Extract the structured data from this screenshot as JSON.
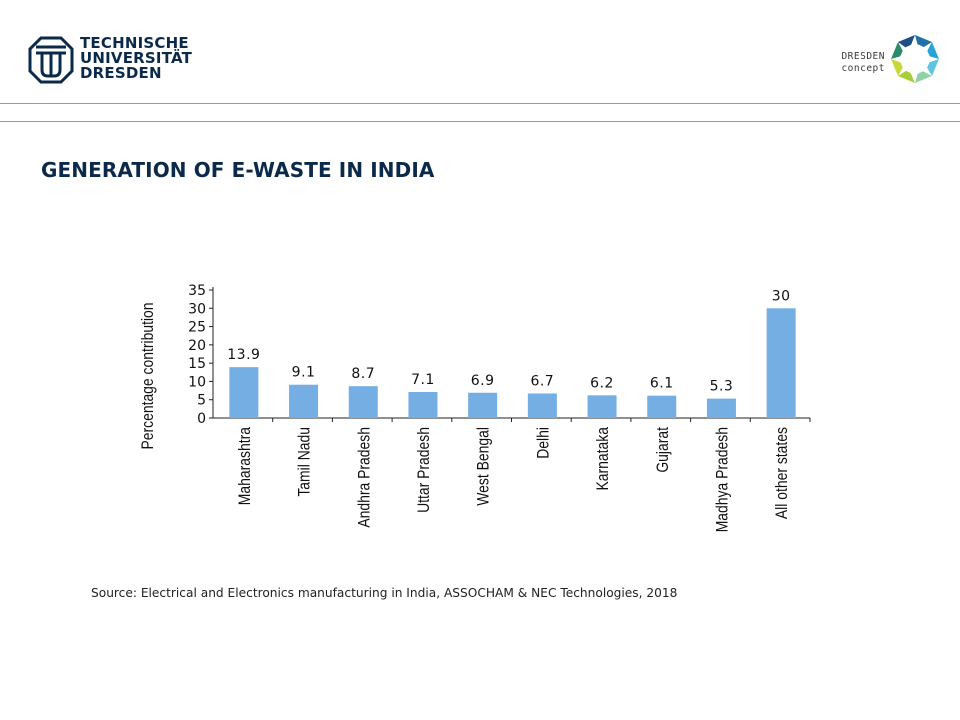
{
  "header": {
    "university_logo": {
      "lines": [
        "TECHNISCHE",
        "UNIVERSITÄT",
        "DRESDEN"
      ],
      "color": "#0b2a4a"
    },
    "concept_logo": {
      "lines": [
        "DRESDEN",
        "concept"
      ]
    }
  },
  "slide": {
    "title": "GENERATION OF E-WASTE IN INDIA",
    "source": "Source: Electrical and Electronics manufacturing in India, ASSOCHAM & NEC Technologies, 2018"
  },
  "chart_data": {
    "type": "bar",
    "categories": [
      "Maharashtra",
      "Tamil Nadu",
      "Andhra Pradesh",
      "Uttar Pradesh",
      "West Bengal",
      "Delhi",
      "Karnataka",
      "Gujarat",
      "Madhya Pradesh",
      "All other states"
    ],
    "values": [
      13.9,
      9.1,
      8.7,
      7.1,
      6.9,
      6.7,
      6.2,
      6.1,
      5.3,
      30
    ],
    "value_labels": [
      "13.9",
      "9.1",
      "8.7",
      "7.1",
      "6.9",
      "6.7",
      "6.2",
      "6.1",
      "5.3",
      "30"
    ],
    "ylabel": "Percentage contribution",
    "xlabel": "",
    "ylim": [
      0,
      35
    ],
    "yticks": [
      0,
      5,
      10,
      15,
      20,
      25,
      30,
      35
    ],
    "grid": false,
    "bar_color": "#74aee2"
  }
}
